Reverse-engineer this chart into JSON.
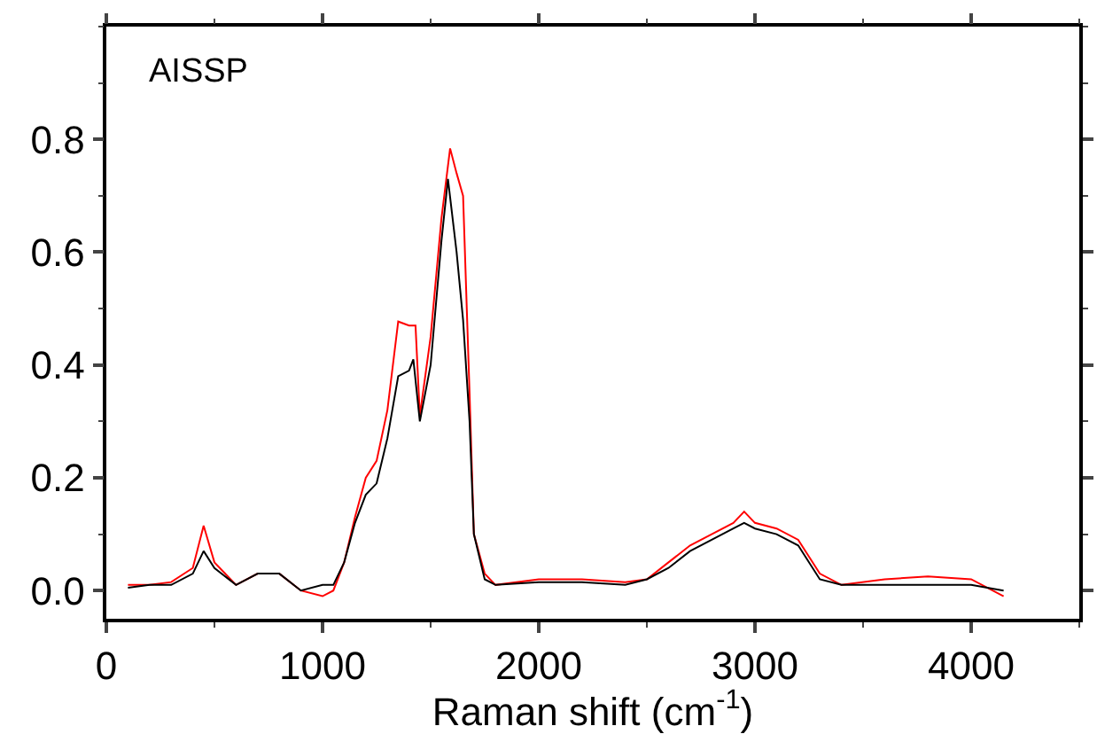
{
  "chart_data": {
    "type": "line",
    "xlabel": "Raman shift (cm$^{-1}$)",
    "annotations": [
      "AISSP"
    ],
    "xlim": [
      0,
      4500
    ],
    "xticks": [
      0,
      1000,
      2000,
      3000,
      4000
    ],
    "ylim": [
      -0.05,
      1.0
    ],
    "yticks": [
      {
        "value": 0,
        "label": "0.0"
      },
      0.2,
      0.4,
      0.6,
      0.8
    ],
    "grid": false,
    "marker": "none",
    "line_style": "solid",
    "series": [
      {
        "color": "#ff0000",
        "x": [
          100,
          200,
          300,
          400,
          450,
          500,
          600,
          700,
          800,
          900,
          1000,
          1050,
          1100,
          1150,
          1200,
          1250,
          1300,
          1350,
          1400,
          1430,
          1450,
          1500,
          1550,
          1590,
          1620,
          1650,
          1680,
          1700,
          1750,
          1800,
          2000,
          2200,
          2400,
          2500,
          2600,
          2700,
          2800,
          2900,
          2950,
          3000,
          3100,
          3200,
          3300,
          3400,
          3600,
          3800,
          4000,
          4150
        ],
        "values": [
          0.01,
          0.01,
          0.015,
          0.04,
          0.115,
          0.05,
          0.01,
          0.03,
          0.03,
          0.0,
          -0.01,
          0.0,
          0.05,
          0.13,
          0.2,
          0.23,
          0.32,
          0.477,
          0.47,
          0.47,
          0.31,
          0.45,
          0.66,
          0.784,
          0.74,
          0.7,
          0.35,
          0.1,
          0.03,
          0.01,
          0.02,
          0.02,
          0.015,
          0.02,
          0.05,
          0.08,
          0.1,
          0.12,
          0.14,
          0.12,
          0.11,
          0.09,
          0.03,
          0.01,
          0.02,
          0.025,
          0.02,
          -0.01
        ]
      },
      {
        "color": "#000000",
        "x": [
          100,
          200,
          300,
          400,
          450,
          500,
          600,
          700,
          800,
          900,
          1000,
          1050,
          1100,
          1150,
          1200,
          1250,
          1300,
          1350,
          1400,
          1420,
          1450,
          1500,
          1550,
          1580,
          1620,
          1650,
          1680,
          1700,
          1750,
          1800,
          2000,
          2200,
          2400,
          2500,
          2600,
          2700,
          2800,
          2900,
          2950,
          3000,
          3100,
          3200,
          3300,
          3400,
          3600,
          3800,
          4000,
          4150
        ],
        "values": [
          0.005,
          0.01,
          0.01,
          0.03,
          0.07,
          0.04,
          0.01,
          0.03,
          0.03,
          0.0,
          0.01,
          0.01,
          0.05,
          0.12,
          0.17,
          0.19,
          0.27,
          0.38,
          0.39,
          0.41,
          0.3,
          0.4,
          0.62,
          0.73,
          0.6,
          0.48,
          0.3,
          0.1,
          0.02,
          0.01,
          0.015,
          0.015,
          0.01,
          0.02,
          0.04,
          0.07,
          0.09,
          0.11,
          0.12,
          0.11,
          0.1,
          0.08,
          0.02,
          0.01,
          0.01,
          0.01,
          0.01,
          0.0
        ]
      }
    ]
  }
}
